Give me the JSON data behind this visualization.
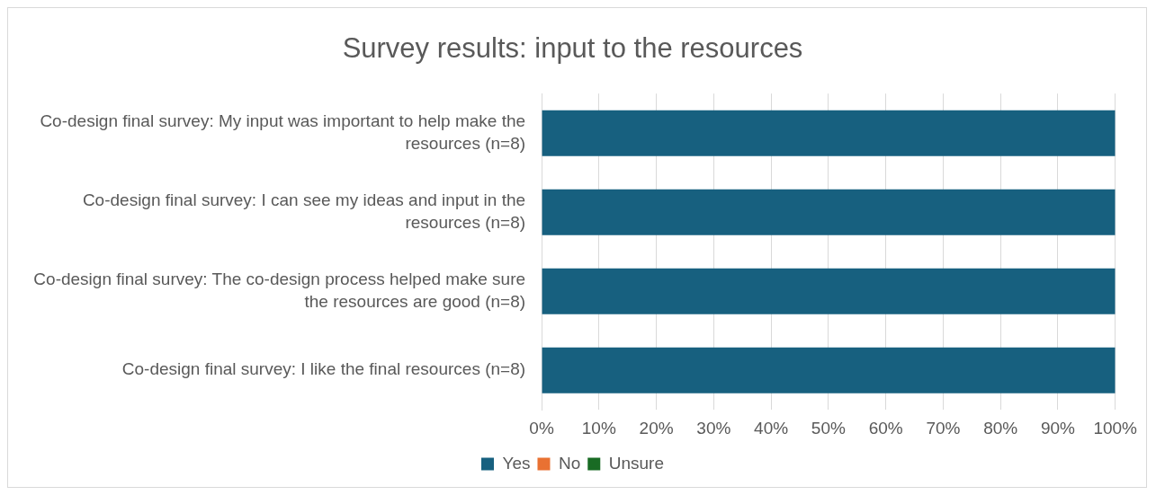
{
  "chart_data": {
    "type": "bar",
    "title": "Survey results: input to the resources",
    "orientation": "horizontal",
    "stacked": true,
    "categories": [
      "Co-design final survey: My input was important to help make the resources (n=8)",
      "Co-design final survey: I can see my ideas and input in the resources (n=8)",
      "Co-design final survey: The co-design process helped make sure the resources are good (n=8)",
      "Co-design final survey: I like the final resources (n=8)"
    ],
    "series": [
      {
        "name": "Yes",
        "color": "#17607f",
        "values": [
          100,
          100,
          100,
          100
        ]
      },
      {
        "name": "No",
        "color": "#e97132",
        "values": [
          0,
          0,
          0,
          0
        ]
      },
      {
        "name": "Unsure",
        "color": "#196b24",
        "values": [
          0,
          0,
          0,
          0
        ]
      }
    ],
    "xlim": [
      0,
      100
    ],
    "xticks": [
      {
        "value": 0,
        "label": "0%"
      },
      {
        "value": 10,
        "label": "10%"
      },
      {
        "value": 20,
        "label": "20%"
      },
      {
        "value": 30,
        "label": "30%"
      },
      {
        "value": 40,
        "label": "40%"
      },
      {
        "value": 50,
        "label": "50%"
      },
      {
        "value": 60,
        "label": "60%"
      },
      {
        "value": 70,
        "label": "70%"
      },
      {
        "value": 80,
        "label": "80%"
      },
      {
        "value": 90,
        "label": "90%"
      },
      {
        "value": 100,
        "label": "100%"
      }
    ],
    "grid": "x",
    "legend": "bottom"
  }
}
